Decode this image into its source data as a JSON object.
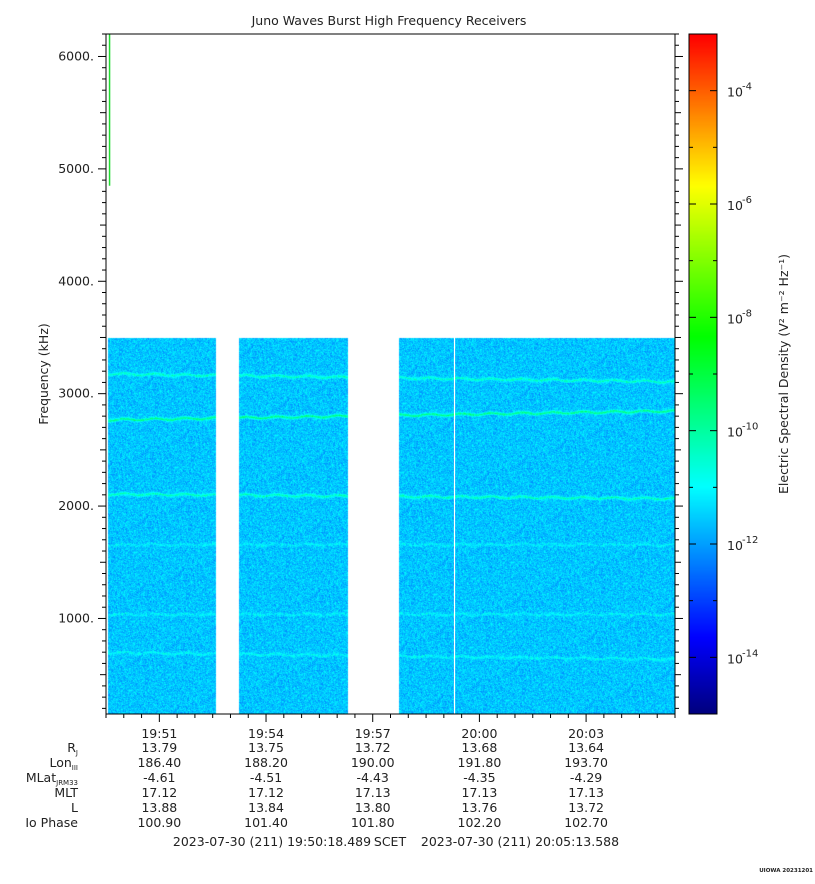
{
  "chart_data": {
    "type": "heatmap",
    "title": "Juno Waves Burst High Frequency Receivers",
    "ylabel": "Frequency (kHz)",
    "ylim": [
      150,
      6200
    ],
    "yticks": [
      {
        "value": 1000,
        "label": "1000."
      },
      {
        "value": 2000,
        "label": "2000."
      },
      {
        "value": 3000,
        "label": "3000."
      },
      {
        "value": 4000,
        "label": "4000."
      },
      {
        "value": 5000,
        "label": "5000."
      },
      {
        "value": 6000,
        "label": "6000."
      }
    ],
    "x_range_minutes": [
      19.5,
      35.5
    ],
    "xticks": [
      {
        "value": 21,
        "label": "19:51"
      },
      {
        "value": 24,
        "label": "19:54"
      },
      {
        "value": 27,
        "label": "19:57"
      },
      {
        "value": 30,
        "label": "20:00"
      },
      {
        "value": 33,
        "label": "20:03"
      }
    ],
    "data_segments": [
      {
        "start": 19.55,
        "end": 22.6
      },
      {
        "start": 23.25,
        "end": 26.3
      },
      {
        "start": 27.75,
        "end": 35.5
      }
    ],
    "data_top_khz": 3500,
    "data_bottom_khz": 150,
    "background_level_exp": -11.6,
    "emission_lines": [
      {
        "khz_start": 3180,
        "khz_end": 3110,
        "strength": 1.2
      },
      {
        "khz_start": 2770,
        "khz_end": 2850,
        "strength": 1.8
      },
      {
        "khz_start": 2110,
        "khz_end": 2070,
        "strength": 1.3
      },
      {
        "khz_start": 1660,
        "khz_end": 1660,
        "strength": 0.45
      },
      {
        "khz_start": 1040,
        "khz_end": 1040,
        "strength": 0.5
      },
      {
        "khz_start": 700,
        "khz_end": 640,
        "strength": 0.6
      }
    ],
    "artifacts": [
      {
        "type": "vertical-line",
        "minute": 19.6,
        "khz_from": 4850,
        "khz_to": 6200,
        "color": "#22dd33"
      },
      {
        "type": "white-gap",
        "minute": 29.3
      }
    ],
    "colorbar": {
      "label": "Electric Spectral Density (V² m⁻² Hz⁻¹)",
      "range_exp": [
        -15,
        -3
      ],
      "ticks": [
        {
          "exp": -4,
          "label": "-4"
        },
        {
          "exp": -6,
          "label": "-6"
        },
        {
          "exp": -8,
          "label": "-8"
        },
        {
          "exp": -10,
          "label": "-10"
        },
        {
          "exp": -12,
          "label": "-12"
        },
        {
          "exp": -14,
          "label": "-14"
        }
      ],
      "colormap": [
        "#000080",
        "#0000ff",
        "#0080ff",
        "#00ffff",
        "#00ff80",
        "#00ff00",
        "#80ff00",
        "#ffff00",
        "#ff8000",
        "#ff0000"
      ]
    }
  },
  "ephemeris": {
    "rows": [
      {
        "label": "R",
        "sub": "J",
        "values": [
          "13.79",
          "13.75",
          "13.72",
          "13.68",
          "13.64"
        ]
      },
      {
        "label": "Lon",
        "sub": "III",
        "values": [
          "186.40",
          "188.20",
          "190.00",
          "191.80",
          "193.70"
        ]
      },
      {
        "label": "MLat",
        "sub": "JRM33",
        "values": [
          "-4.61",
          "-4.51",
          "-4.43",
          "-4.35",
          "-4.29"
        ]
      },
      {
        "label": "MLT",
        "sub": "",
        "values": [
          "17.12",
          "17.12",
          "17.13",
          "17.13",
          "17.13"
        ]
      },
      {
        "label": "L",
        "sub": "",
        "values": [
          "13.88",
          "13.84",
          "13.80",
          "13.76",
          "13.72"
        ]
      },
      {
        "label": "Io Phase",
        "sub": "",
        "values": [
          "100.90",
          "101.40",
          "101.80",
          "102.20",
          "102.70"
        ]
      }
    ]
  },
  "footer": {
    "start": "2023-07-30 (211) 19:50:18.489",
    "scet": "SCET",
    "end": "2023-07-30 (211) 20:05:13.588",
    "stamp": "UIOWA 20231201"
  }
}
